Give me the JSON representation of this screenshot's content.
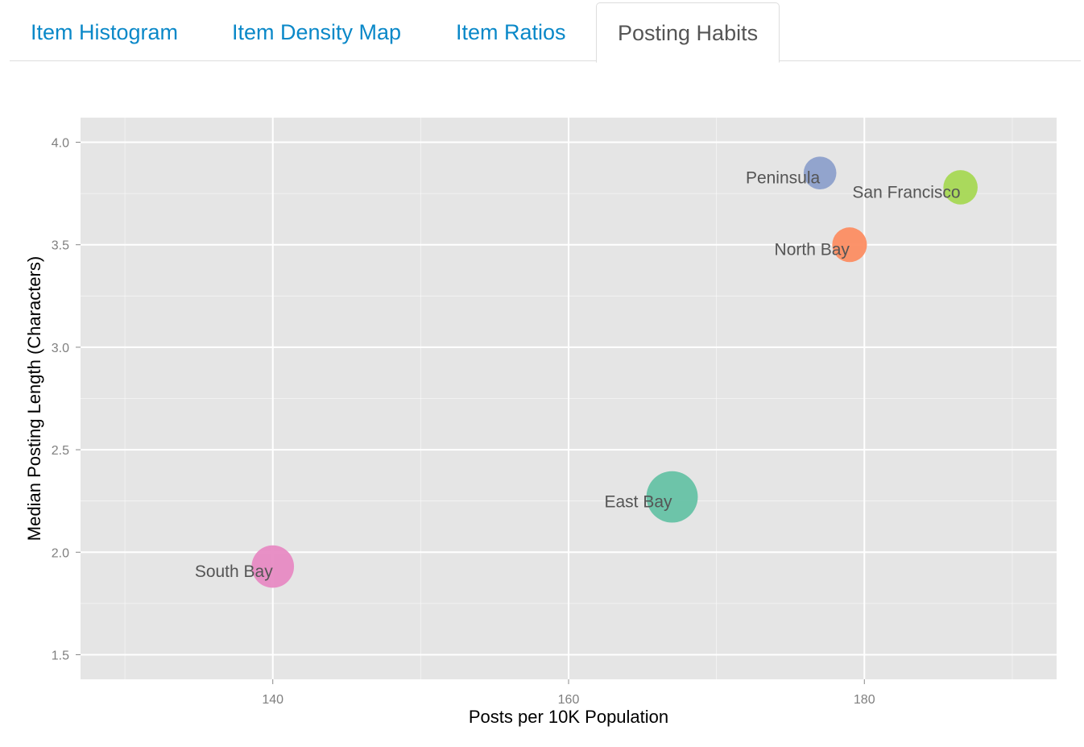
{
  "tabs": [
    {
      "label": "Item Histogram",
      "active": false
    },
    {
      "label": "Item Density Map",
      "active": false
    },
    {
      "label": "Item Ratios",
      "active": false
    },
    {
      "label": "Posting Habits",
      "active": true
    }
  ],
  "colors": {
    "tab_link": "#0a88c8",
    "tab_active_text": "#555555",
    "panel_background": "#e5e5e5",
    "gridline": "#ffffff",
    "label_text": "#555555"
  },
  "chart_data": {
    "type": "scatter",
    "title": "",
    "xlabel": "Posts per 10K Population",
    "ylabel": "Median Posting Length (Characters)",
    "xlim": [
      127,
      193
    ],
    "ylim": [
      1.38,
      4.12
    ],
    "xticks": [
      140,
      160,
      180
    ],
    "yticks": [
      1.5,
      2.0,
      2.5,
      3.0,
      3.5,
      4.0
    ],
    "xtick_labels": [
      "140",
      "160",
      "180"
    ],
    "ytick_labels": [
      "1.5",
      "2.0",
      "2.5",
      "3.0",
      "3.5",
      "4.0"
    ],
    "grid": true,
    "points": [
      {
        "name": "Peninsula",
        "x": 177.0,
        "y": 3.85,
        "size": 2,
        "color": "#8da0cb"
      },
      {
        "name": "San Francisco",
        "x": 186.5,
        "y": 3.78,
        "size": 2.4,
        "color": "#a6d854"
      },
      {
        "name": "North Bay",
        "x": 179.0,
        "y": 3.5,
        "size": 2.5,
        "color": "#fc8d62"
      },
      {
        "name": "East Bay",
        "x": 167.0,
        "y": 2.27,
        "size": 9,
        "color": "#66c2a5"
      },
      {
        "name": "South Bay",
        "x": 140.0,
        "y": 1.93,
        "size": 5,
        "color": "#e78ac3"
      }
    ]
  }
}
